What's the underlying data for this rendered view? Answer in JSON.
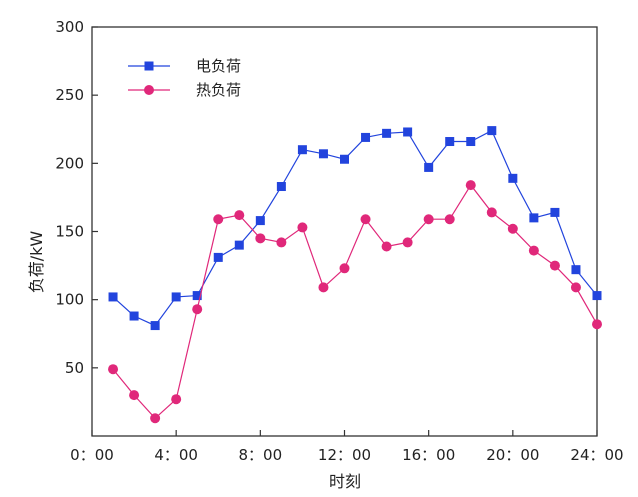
{
  "chart_data": {
    "type": "line",
    "title": "",
    "xlabel": "时刻",
    "ylabel": "负荷/kW",
    "xlim": [
      0,
      24
    ],
    "ylim": [
      0,
      300
    ],
    "x_ticks": [
      0,
      4,
      8,
      12,
      16,
      20,
      24
    ],
    "x_tick_labels": [
      "0：00",
      "4：00",
      "8：00",
      "12：00",
      "16：00",
      "20：00",
      "24：00"
    ],
    "y_ticks": [
      50,
      100,
      150,
      200,
      250,
      300
    ],
    "y_tick_labels": [
      "50",
      "100",
      "150",
      "200",
      "250",
      "300"
    ],
    "grid": false,
    "legend_position": "top-left",
    "x": [
      1,
      2,
      3,
      4,
      5,
      6,
      7,
      8,
      9,
      10,
      11,
      12,
      13,
      14,
      15,
      16,
      17,
      18,
      19,
      20,
      21,
      22,
      23,
      24
    ],
    "series": [
      {
        "name": "电负荷",
        "color": "#2244dd",
        "marker": "square",
        "values": [
          102,
          88,
          81,
          102,
          103,
          131,
          140,
          158,
          183,
          210,
          207,
          203,
          219,
          222,
          223,
          197,
          216,
          216,
          224,
          189,
          160,
          164,
          122,
          103
        ]
      },
      {
        "name": "热负荷",
        "color": "#e0287a",
        "marker": "circle",
        "values": [
          49,
          30,
          13,
          27,
          93,
          159,
          162,
          145,
          142,
          153,
          109,
          123,
          159,
          139,
          142,
          159,
          159,
          184,
          164,
          152,
          136,
          125,
          109,
          82
        ]
      }
    ]
  }
}
